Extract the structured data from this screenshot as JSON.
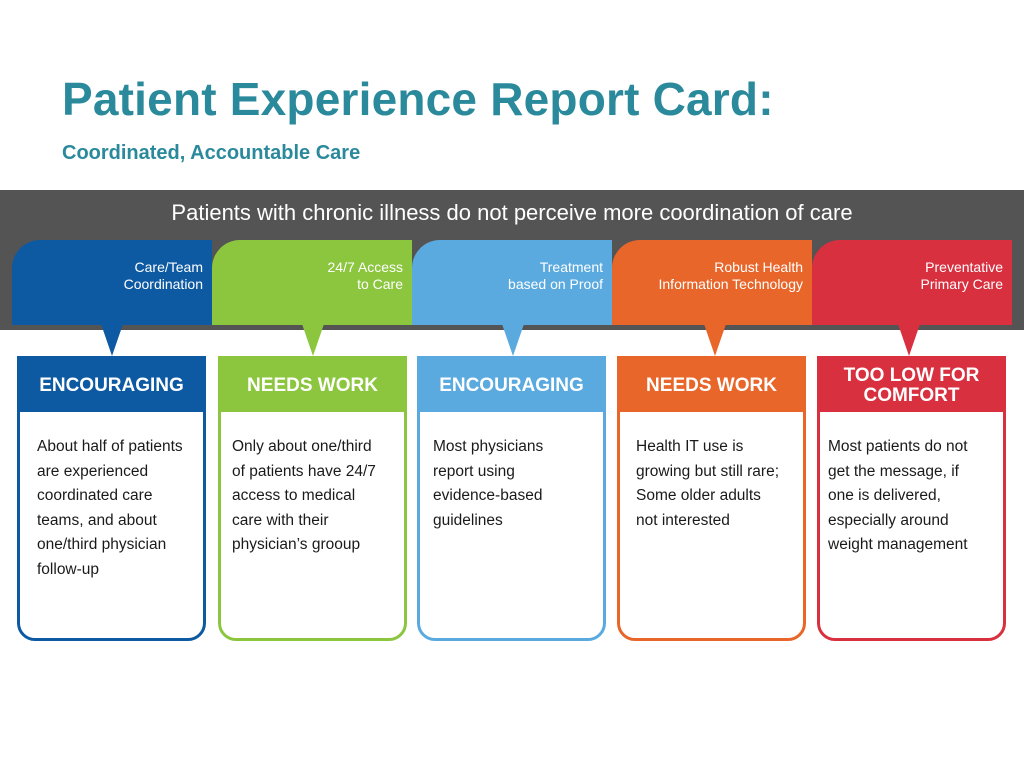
{
  "title": "Patient Experience Report Card:",
  "subtitle": "Coordinated, Accountable Care",
  "banner": "Patients with chronic illness do not perceive more coordination of care",
  "columns": [
    {
      "tab_line1": "Care/Team",
      "tab_line2": "Coordination",
      "rating": "ENCOURAGING",
      "body": [
        "About half of patients",
        "are experienced",
        "coordinated  care",
        "teams, and about",
        "one/third  physician",
        "follow-up"
      ],
      "color": "#0d5aa2"
    },
    {
      "tab_line1": "24/7 Access",
      "tab_line2": "to Care",
      "rating": "NEEDS WORK",
      "body": [
        "Only about one/third",
        "of patients  have 24/7",
        "access to medical",
        "care with their",
        "physician’s grooup"
      ],
      "color": "#8cc63f"
    },
    {
      "tab_line1": "Treatment",
      "tab_line2": "based on Proof",
      "rating": "ENCOURAGING",
      "body": [
        "Most physicians",
        "report using",
        "evidence-based",
        "guidelines"
      ],
      "color": "#5aaae0"
    },
    {
      "tab_line1": "Robust Health",
      "tab_line2": "Information Technology",
      "rating": "NEEDS WORK",
      "body": [
        "Health  IT use  is",
        "growing  but  still rare;",
        "Some older adults",
        "not interested"
      ],
      "color": "#e8662a"
    },
    {
      "tab_line1": "Preventative",
      "tab_line2": "Primary Care",
      "rating_line1": "TOO LOW FOR",
      "rating_line2": "COMFORT",
      "body": [
        "Most patients  do not",
        "get  the message,  if",
        "one is delivered,",
        "especially around",
        "weight  management"
      ],
      "color": "#d9303f"
    }
  ]
}
